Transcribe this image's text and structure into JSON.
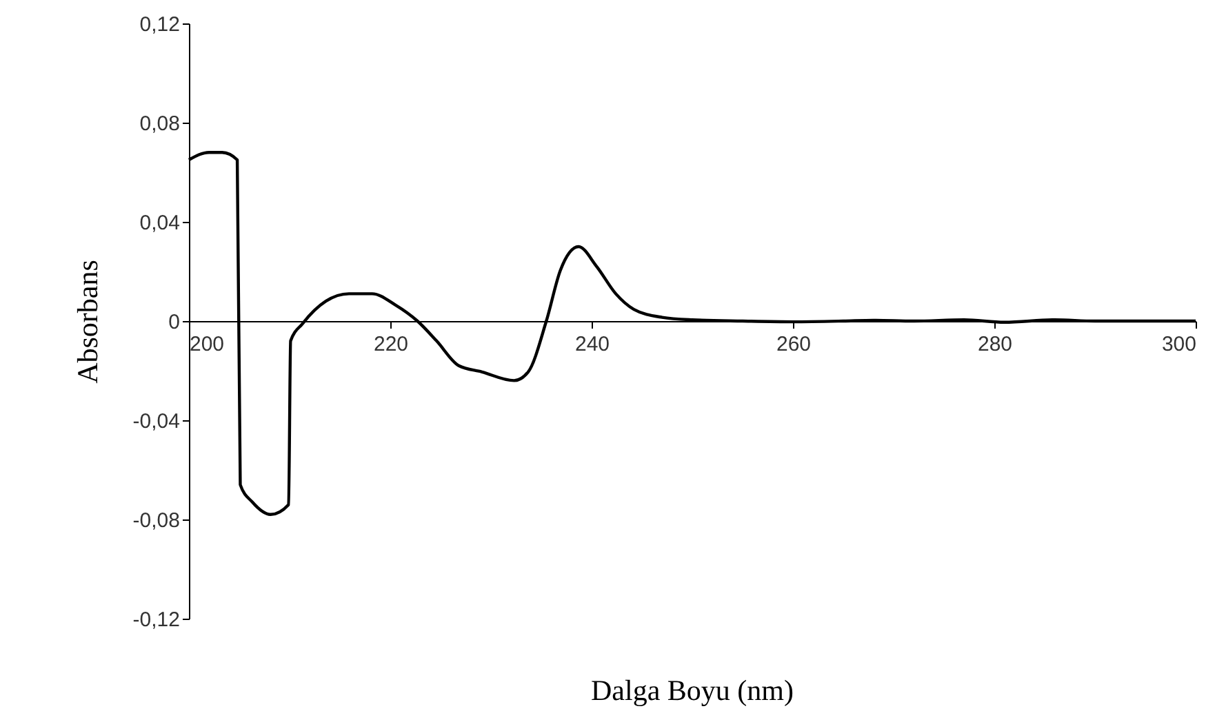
{
  "chart_data": {
    "type": "line",
    "xlabel": "Dalga Boyu (nm)",
    "ylabel": "Absorbans",
    "x": [
      200,
      202,
      203.3,
      204.8,
      205.1,
      206.3,
      208.1,
      209.9,
      210.1,
      211.3,
      213.6,
      215.9,
      218.2,
      220.5,
      222.7,
      224.6,
      226.8,
      229.1,
      232.3,
      233.7,
      235.5,
      236.9,
      238.7,
      240.5,
      242.4,
      244.2,
      247,
      250,
      255,
      260,
      265,
      268,
      272,
      277,
      281,
      286,
      290,
      295,
      300
    ],
    "series": [
      {
        "color": "#000000",
        "values": [
          0.065,
          0.068,
          0.068,
          0.065,
          -0.066,
          -0.073,
          -0.078,
          -0.074,
          -0.008,
          -0.001,
          0.008,
          0.011,
          0.011,
          0.0065,
          0,
          -0.008,
          -0.018,
          -0.0205,
          -0.024,
          -0.0205,
          0,
          0.0205,
          0.03,
          0.022,
          0.011,
          0.0047,
          0.0015,
          0.0005,
          0,
          -0.0003,
          0,
          0.0003,
          0,
          0.0005,
          -0.0005,
          0.0005,
          0,
          0,
          0
        ]
      }
    ],
    "xlim": [
      200,
      300
    ],
    "xticks": [
      200,
      220,
      240,
      260,
      280,
      300
    ],
    "ylim": [
      -0.12,
      0.12
    ],
    "yticks": [
      {
        "value": -0.12,
        "label": "-0,12"
      },
      {
        "value": -0.08,
        "label": "-0,08"
      },
      {
        "value": -0.04,
        "label": "-0,04"
      },
      {
        "value": 0,
        "label": "0"
      },
      {
        "value": 0.04,
        "label": "0,04"
      },
      {
        "value": 0.08,
        "label": "0,08"
      },
      {
        "value": 0.12,
        "label": "0,12"
      }
    ],
    "grid": false,
    "marker": "none",
    "line_style": "solid"
  }
}
